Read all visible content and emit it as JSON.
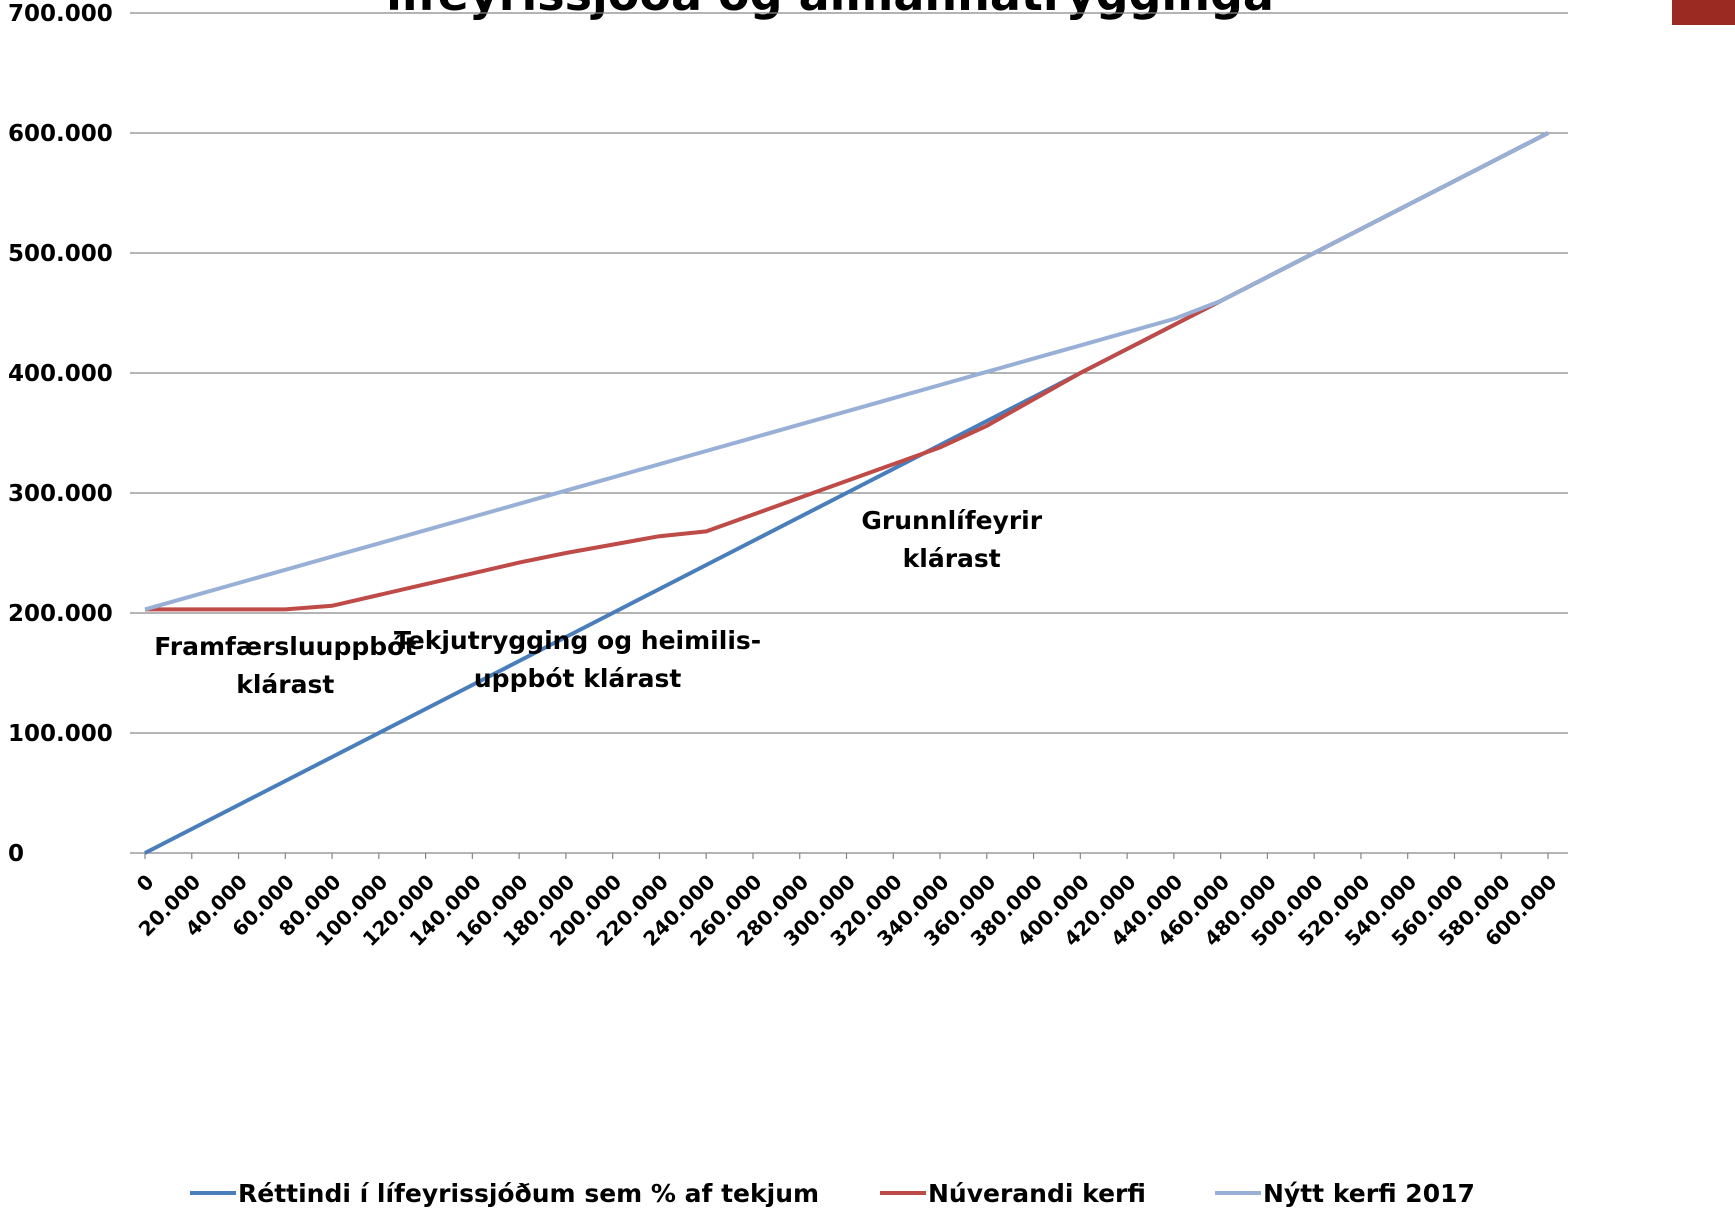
{
  "chart_data": {
    "type": "line",
    "title": "lífeyrissjóða og almannatrygginga",
    "x": [
      0,
      20000,
      40000,
      60000,
      80000,
      100000,
      120000,
      140000,
      160000,
      180000,
      200000,
      220000,
      240000,
      260000,
      280000,
      300000,
      320000,
      340000,
      360000,
      380000,
      400000,
      420000,
      440000,
      460000,
      480000,
      500000,
      520000,
      540000,
      560000,
      580000,
      600000
    ],
    "series": [
      {
        "name": "Réttindi í lífeyrissjóðum sem % af tekjum",
        "color": "#4a7ebb",
        "values": [
          0,
          20000,
          40000,
          60000,
          80000,
          100000,
          120000,
          140000,
          160000,
          180000,
          200000,
          220000,
          240000,
          260000,
          280000,
          300000,
          320000,
          340000,
          360000,
          380000,
          400000,
          420000,
          440000,
          460000,
          480000,
          500000,
          520000,
          540000,
          560000,
          580000,
          600000
        ]
      },
      {
        "name": "Núverandi kerfi",
        "color": "#be4b48",
        "values": [
          203000,
          203000,
          203000,
          203000,
          206000,
          215000,
          224000,
          233000,
          242000,
          250000,
          257000,
          264000,
          268000,
          282000,
          296000,
          310000,
          324000,
          338000,
          356000,
          378000,
          400000,
          420000,
          440000,
          460000,
          480000,
          500000,
          520000,
          540000,
          560000,
          580000,
          600000
        ]
      },
      {
        "name": "Nýtt kerfi 2017",
        "color": "#98b0d6",
        "values": [
          203000,
          214000,
          225000,
          236000,
          247000,
          258000,
          269000,
          280000,
          291000,
          302000,
          313000,
          324000,
          335000,
          346000,
          357000,
          368000,
          379000,
          390000,
          401000,
          412000,
          423000,
          434000,
          445000,
          460000,
          480000,
          500000,
          520000,
          540000,
          560000,
          580000,
          600000
        ]
      }
    ],
    "xlim": [
      0,
      600000
    ],
    "xticks": [
      0,
      {
        "value": 20000,
        "label": "20.000"
      },
      {
        "value": 40000,
        "label": "40.000"
      },
      {
        "value": 60000,
        "label": "60.000"
      },
      {
        "value": 80000,
        "label": "80.000"
      },
      {
        "value": 100000,
        "label": "100.000"
      },
      {
        "value": 120000,
        "label": "120.000"
      },
      {
        "value": 140000,
        "label": "140.000"
      },
      {
        "value": 160000,
        "label": "160.000"
      },
      {
        "value": 180000,
        "label": "180.000"
      },
      {
        "value": 200000,
        "label": "200.000"
      },
      {
        "value": 220000,
        "label": "220.000"
      },
      {
        "value": 240000,
        "label": "240.000"
      },
      {
        "value": 260000,
        "label": "260.000"
      },
      {
        "value": 280000,
        "label": "280.000"
      },
      {
        "value": 300000,
        "label": "300.000"
      },
      {
        "value": 320000,
        "label": "320.000"
      },
      {
        "value": 340000,
        "label": "340.000"
      },
      {
        "value": 360000,
        "label": "360.000"
      },
      {
        "value": 380000,
        "label": "380.000"
      },
      {
        "value": 400000,
        "label": "400.000"
      },
      {
        "value": 420000,
        "label": "420.000"
      },
      {
        "value": 440000,
        "label": "440.000"
      },
      {
        "value": 460000,
        "label": "460.000"
      },
      {
        "value": 480000,
        "label": "480.000"
      },
      {
        "value": 500000,
        "label": "500.000"
      },
      {
        "value": 520000,
        "label": "520.000"
      },
      {
        "value": 540000,
        "label": "540.000"
      },
      {
        "value": 560000,
        "label": "560.000"
      },
      {
        "value": 580000,
        "label": "580.000"
      },
      {
        "value": 600000,
        "label": "600.000"
      }
    ],
    "ylim": [
      0,
      700000
    ],
    "yticks": [
      0,
      {
        "value": 100000,
        "label": "100.000"
      },
      {
        "value": 200000,
        "label": "200.000"
      },
      {
        "value": 300000,
        "label": "300.000"
      },
      {
        "value": 400000,
        "label": "400.000"
      },
      {
        "value": 500000,
        "label": "500.000"
      },
      {
        "value": 600000,
        "label": "600.000"
      },
      {
        "value": 700000,
        "label": "700.000"
      }
    ],
    "grid": true,
    "annotations": [
      {
        "lines": [
          "Framfærsluuppbót",
          "klárast"
        ],
        "x": 60000,
        "y": 165000
      },
      {
        "lines": [
          "Tekjutrygging og heimilis-",
          "uppbót klárast"
        ],
        "x": 185000,
        "y": 170000
      },
      {
        "lines": [
          "Grunnlífeyrir",
          "klárast"
        ],
        "x": 345000,
        "y": 270000
      }
    ]
  }
}
